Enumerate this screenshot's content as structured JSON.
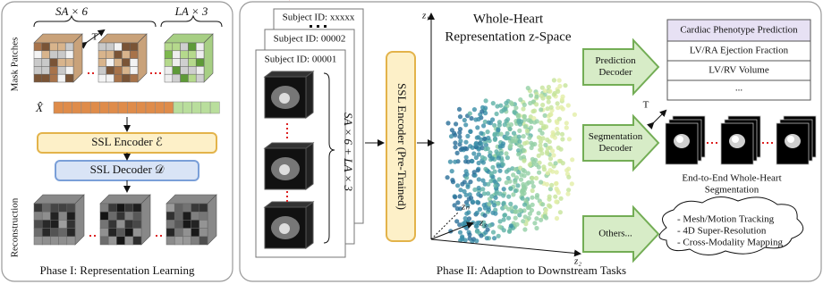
{
  "phase1": {
    "title": "Phase I: Representation Learning",
    "sa_label": "SA × 6",
    "la_label": "LA × 3",
    "time_label": "T",
    "mask_patches_label": "Mask Patches",
    "x_hat": "X̂",
    "encoder": "SSL Encoder ℰ",
    "decoder": "SSL Decoder 𝒟",
    "reconstruction_label": "Reconstruction"
  },
  "phase2": {
    "title": "Phase II: Adaption to Downstream Tasks",
    "subjects": [
      "Subject ID: xxxxx",
      "Subject ID: 00002",
      "Subject ID: 00001"
    ],
    "input_label": "SA × 6 + LA × 3",
    "encoder": "SSL Encoder (Pre-Trained)",
    "zspace": {
      "title_lines": [
        "Whole-Heart",
        "Representation z-Space"
      ],
      "axes": [
        "z₁",
        "zₙ",
        "z₃",
        "z₂"
      ]
    },
    "decoders": [
      [
        "Prediction",
        "Decoder"
      ],
      [
        "Segmentation",
        "Decoder"
      ],
      [
        "Others..."
      ]
    ],
    "prediction_table": {
      "header": "Cardiac Phenotype Prediction",
      "rows": [
        "LV/RA Ejection Fraction",
        "LV/RV Volume",
        "..."
      ]
    },
    "segmentation": {
      "time_label": "T",
      "caption_lines": [
        "End-to-End Whole-Heart",
        "Segmentation"
      ]
    },
    "others": [
      "- Mesh/Motion Tracking",
      "- 4D Super-Resolution",
      "- Cross-Modality Mapping"
    ]
  }
}
